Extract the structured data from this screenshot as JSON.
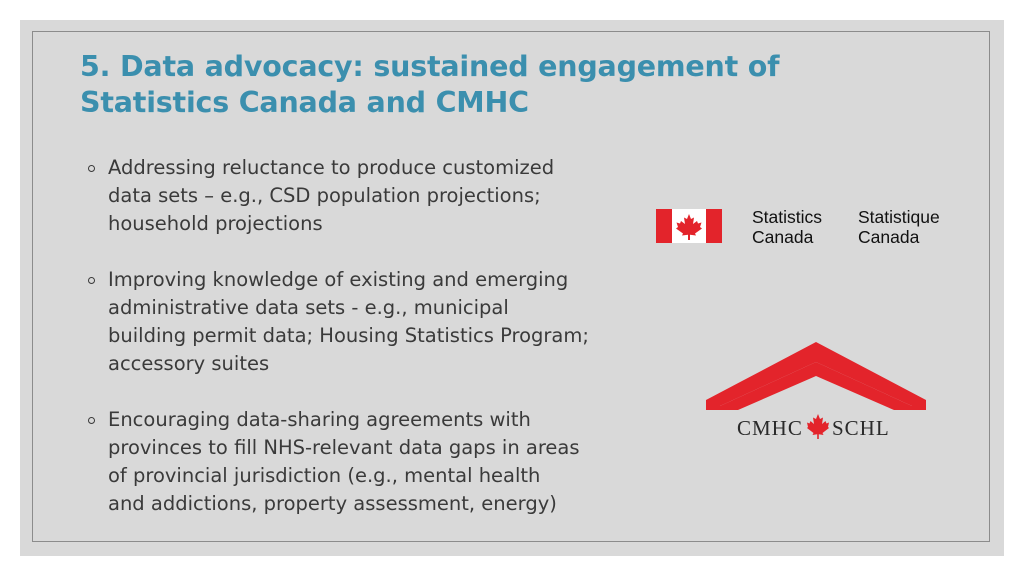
{
  "title": {
    "line1": "5. Data advocacy: sustained engagement of",
    "line2": "Statistics Canada and CMHC"
  },
  "bullets": [
    {
      "lines": [
        "Addressing reluctance to produce customized",
        "data sets – e.g., CSD population projections;",
        "household projections"
      ]
    },
    {
      "lines": [
        "Improving knowledge of existing and emerging",
        "administrative data sets - e.g., municipal",
        "building permit data; Housing Statistics Program;",
        "accessory suites"
      ]
    },
    {
      "lines": [
        "Encouraging data-sharing agreements with",
        "provinces to fill NHS-relevant data gaps in areas",
        "of provincial jurisdiction (e.g., mental health",
        "and addictions, property assessment, energy)"
      ]
    }
  ],
  "statcan_logo": {
    "en_line1": "Statistics",
    "en_line2": "Canada",
    "fr_line1": "Statistique",
    "fr_line2": "Canada",
    "flag_icon": "canada-flag-icon",
    "flag_color": "#e3242b"
  },
  "cmhc_logo": {
    "left_text": "CMHC",
    "right_text": "SCHL",
    "roof_color": "#e3242b",
    "leaf_icon": "maple-leaf-icon"
  },
  "colors": {
    "title": "#3b8fae",
    "text": "#3a3a3a",
    "background": "#d9d9d9"
  }
}
